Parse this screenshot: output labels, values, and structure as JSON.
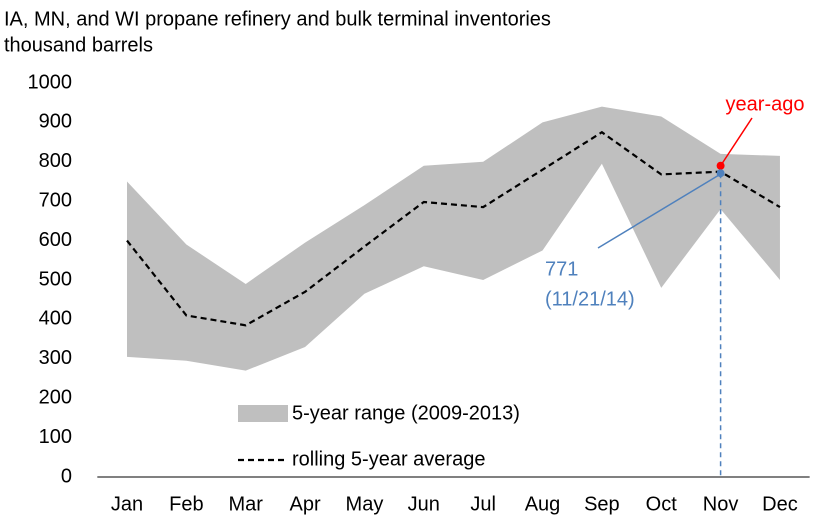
{
  "chart_data": {
    "type": "line",
    "title": "IA, MN, and WI propane refinery and bulk terminal inventories",
    "subtitle": "thousand barrels",
    "categories": [
      "Jan",
      "Feb",
      "Mar",
      "Apr",
      "May",
      "Jun",
      "Jul",
      "Aug",
      "Sep",
      "Oct",
      "Nov",
      "Dec"
    ],
    "range": {
      "name": "5-year range (2009-2013)",
      "color": "#bfbfbf",
      "lower": [
        305,
        295,
        270,
        330,
        465,
        535,
        500,
        575,
        795,
        480,
        680,
        500
      ],
      "upper": [
        750,
        590,
        490,
        595,
        690,
        790,
        800,
        900,
        940,
        915,
        820,
        815
      ]
    },
    "series": [
      {
        "name": "rolling 5-year average",
        "color": "#000000",
        "values": [
          600,
          410,
          385,
          470,
          585,
          698,
          685,
          780,
          875,
          768,
          775,
          685
        ]
      }
    ],
    "points": [
      {
        "x": "Nov",
        "value": 790,
        "color": "#ff0000",
        "label": "year-ago"
      },
      {
        "x": "Nov",
        "value": 771,
        "color": "#4f81bd",
        "date": "(11/21/14)"
      }
    ],
    "ylim": [
      0,
      1000
    ],
    "yticks": [
      0,
      100,
      200,
      300,
      400,
      500,
      600,
      700,
      800,
      900,
      1000
    ],
    "legend": "bottom"
  }
}
